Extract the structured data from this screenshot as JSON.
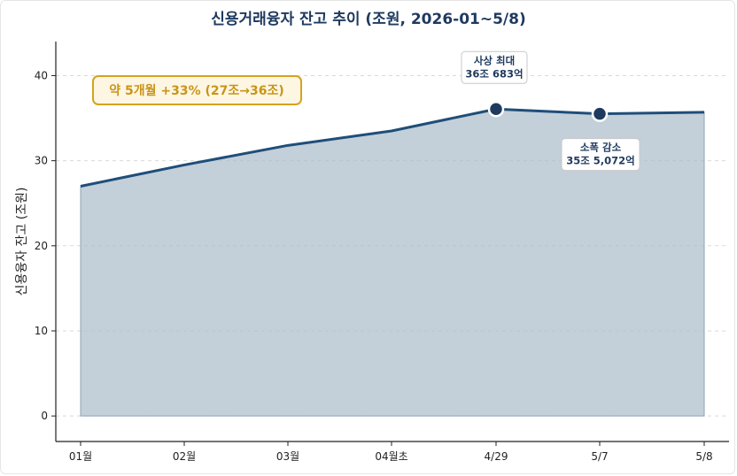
{
  "chart_data": {
    "type": "area",
    "title": "신용거래융자 잔고 추이 (조원, 2026-01~5/8)",
    "ylabel": "신용융자 잔고 (조원)",
    "xlabel": "",
    "ylim": [
      -3,
      44
    ],
    "yticks": [
      0,
      10,
      20,
      30,
      40
    ],
    "categories": [
      "01월",
      "02월",
      "03월",
      "04월초",
      "4/29",
      "5/7",
      "5/8"
    ],
    "series": [
      {
        "values": [
          27.0,
          29.5,
          31.8,
          33.5,
          36.07,
          35.51,
          35.7
        ]
      }
    ],
    "markers": [
      {
        "index": 4,
        "label_line1": "사상 최대",
        "label_line2": "36조 683억"
      },
      {
        "index": 5,
        "label_line1": "소폭 감소",
        "label_line2": "35조 5,072억"
      }
    ],
    "highlight": "약 5개월 +33% (27조→36조)",
    "grid": true,
    "colors": {
      "line": "#1f4e79",
      "fill": "#a9bac9",
      "marker": "#1f3a5f",
      "highlight": "#c99419"
    }
  }
}
